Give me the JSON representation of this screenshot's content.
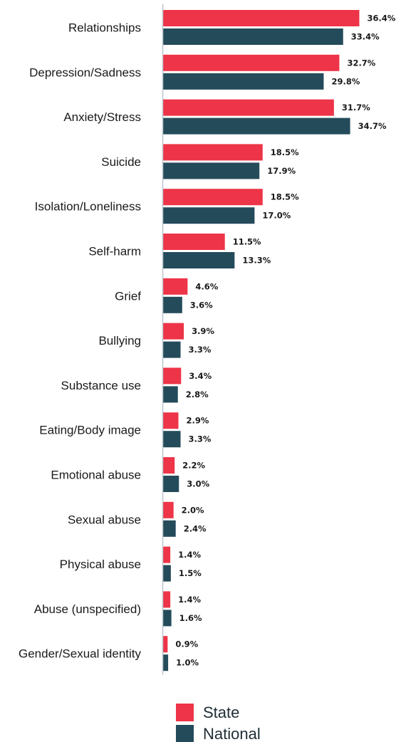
{
  "chart_data": {
    "type": "bar",
    "orientation": "horizontal",
    "categories": [
      "Relationships",
      "Depression/Sadness",
      "Anxiety/Stress",
      "Suicide",
      "Isolation/Loneliness",
      "Self-harm",
      "Grief",
      "Bullying",
      "Substance use",
      "Eating/Body image",
      "Emotional abuse",
      "Sexual abuse",
      "Physical abuse",
      "Abuse (unspecified)",
      "Gender/Sexual identity"
    ],
    "series": [
      {
        "name": "State",
        "color": "#ee3448",
        "values": [
          36.4,
          32.7,
          31.7,
          18.5,
          18.5,
          11.5,
          4.6,
          3.9,
          3.4,
          2.9,
          2.2,
          2.0,
          1.4,
          1.4,
          0.9
        ],
        "labels": [
          "36.4%",
          "32.7%",
          "31.7%",
          "18.5%",
          "18.5%",
          "11.5%",
          "4.6%",
          "3.9%",
          "3.4%",
          "2.9%",
          "2.2%",
          "2.0%",
          "1.4%",
          "1.4%",
          "0.9%"
        ]
      },
      {
        "name": "National",
        "color": "#244b5a",
        "values": [
          33.4,
          29.8,
          34.7,
          17.9,
          17.0,
          13.3,
          3.6,
          3.3,
          2.8,
          3.3,
          3.0,
          2.4,
          1.5,
          1.6,
          1.0
        ],
        "labels": [
          "33.4%",
          "29.8%",
          "34.7%",
          "17.9%",
          "17.0%",
          "13.3%",
          "3.6%",
          "3.3%",
          "2.8%",
          "3.3%",
          "3.0%",
          "2.4%",
          "1.5%",
          "1.6%",
          "1.0%"
        ]
      }
    ],
    "xlim": [
      0,
      36.4
    ],
    "grid": false,
    "legend_position": "bottom",
    "axis_color": "#b9c6cc"
  }
}
